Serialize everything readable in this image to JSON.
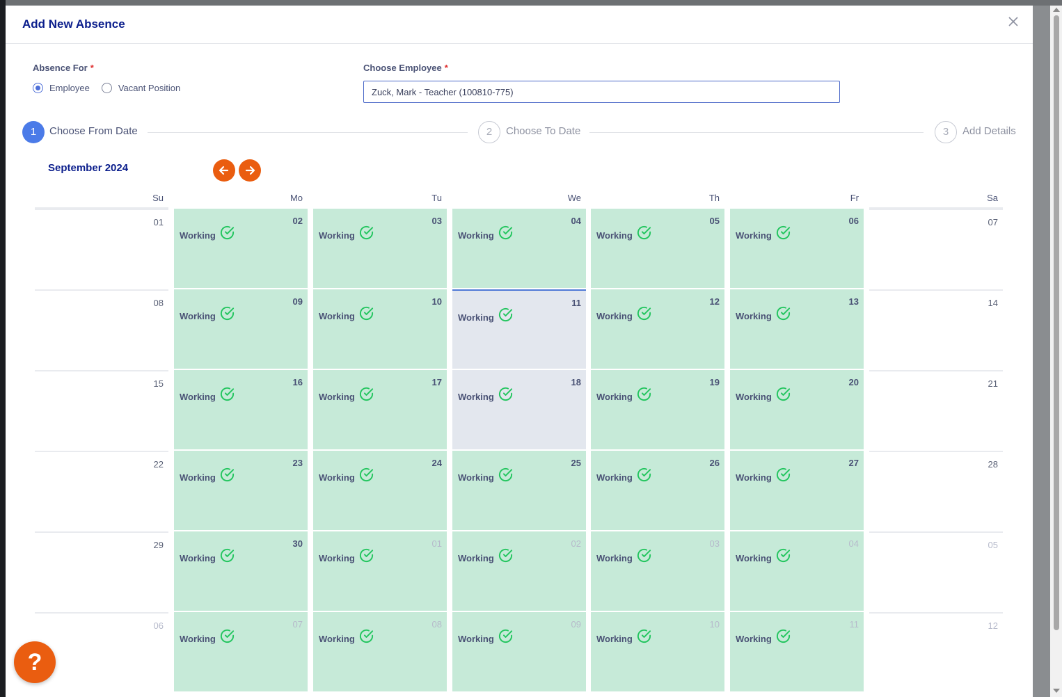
{
  "dialog": {
    "title": "Add New Absence"
  },
  "absence_for": {
    "label": "Absence For",
    "required_mark": "*",
    "options": [
      {
        "label": "Employee",
        "selected": true
      },
      {
        "label": "Vacant Position",
        "selected": false
      }
    ]
  },
  "employee": {
    "label": "Choose Employee",
    "required_mark": "*",
    "value": "Zuck, Mark - Teacher (100810-775)"
  },
  "steps": [
    {
      "number": "1",
      "label": "Choose From Date",
      "active": true
    },
    {
      "number": "2",
      "label": "Choose To Date",
      "active": false
    },
    {
      "number": "3",
      "label": "Add Details",
      "active": false
    }
  ],
  "calendar": {
    "month_label": "September 2024",
    "weekdays": [
      "Su",
      "Mo",
      "Tu",
      "We",
      "Th",
      "Fr",
      "Sa"
    ],
    "working_label": "Working",
    "weeks": [
      [
        "01",
        "02",
        "03",
        "04",
        "05",
        "06",
        "07"
      ],
      [
        "08",
        "09",
        "10",
        "11",
        "12",
        "13",
        "14"
      ],
      [
        "15",
        "16",
        "17",
        "18",
        "19",
        "20",
        "21"
      ],
      [
        "22",
        "23",
        "24",
        "25",
        "26",
        "27",
        "28"
      ],
      [
        "29",
        "30",
        "01",
        "02",
        "03",
        "04",
        "05"
      ],
      [
        "06",
        "07",
        "08",
        "09",
        "10",
        "11",
        "12"
      ]
    ],
    "selected_days": [
      "11",
      "18"
    ],
    "colors": {
      "working": "#c6ead8",
      "selected": "#e3e7ee",
      "check": "#22c55e",
      "accent": "#ea5d10"
    }
  },
  "help": {
    "label": "?"
  }
}
